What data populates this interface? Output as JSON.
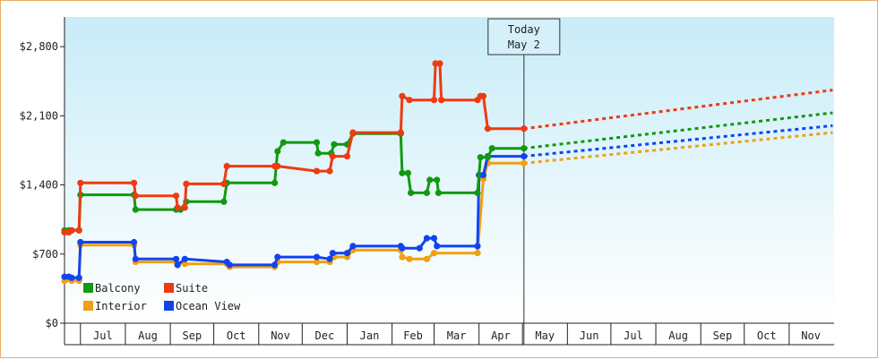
{
  "chart_data": {
    "type": "line",
    "title": "",
    "xlabel": "",
    "ylabel": "",
    "ylim": [
      0,
      3100
    ],
    "yticks": [
      0,
      700,
      1400,
      2100,
      2800
    ],
    "ytick_labels": [
      "$0",
      "$700",
      "$1,400",
      "$2,100",
      "$2,800"
    ],
    "months": [
      "Jul",
      "Aug",
      "Sep",
      "Oct",
      "Nov",
      "Dec",
      "Jan",
      "Feb",
      "Mar",
      "Apr",
      "May",
      "Jun",
      "Jul",
      "Aug",
      "Sep",
      "Oct",
      "Nov"
    ],
    "month_boundaries": [
      "2015-06-21",
      "2015-07-01",
      "2015-08-01",
      "2015-09-01",
      "2015-10-01",
      "2015-11-01",
      "2015-12-01",
      "2016-01-01",
      "2016-02-01",
      "2016-03-01",
      "2016-04-01",
      "2016-05-01",
      "2016-06-01",
      "2016-07-01",
      "2016-08-01",
      "2016-09-01",
      "2016-10-01",
      "2016-11-01",
      "2016-12-01"
    ],
    "today": {
      "date": "2016-05-02",
      "label_line1": "Today",
      "label_line2": "May 2"
    },
    "legend": {
      "position": "lower-left",
      "items": [
        "Balcony",
        "Suite",
        "Interior",
        "Ocean View"
      ]
    },
    "grid": false,
    "colors": {
      "Balcony": "#119911",
      "Suite": "#ee3a11",
      "Interior": "#f0a010",
      "Ocean View": "#1144ee",
      "plot_top": "#c8ecf8",
      "plot_bottom": "#ffffff"
    },
    "series": [
      {
        "name": "Balcony",
        "values": [
          [
            "2015-06-20",
            940
          ],
          [
            "2015-06-23",
            940
          ],
          [
            "2015-06-25",
            940
          ],
          [
            "2015-06-30",
            940
          ],
          [
            "2015-07-01",
            1300
          ],
          [
            "2015-08-07",
            1300
          ],
          [
            "2015-08-08",
            1150
          ],
          [
            "2015-09-05",
            1150
          ],
          [
            "2015-09-08",
            1150
          ],
          [
            "2015-09-12",
            1230
          ],
          [
            "2015-10-08",
            1230
          ],
          [
            "2015-10-10",
            1420
          ],
          [
            "2015-11-12",
            1420
          ],
          [
            "2015-11-14",
            1740
          ],
          [
            "2015-11-18",
            1830
          ],
          [
            "2015-12-11",
            1830
          ],
          [
            "2015-12-12",
            1720
          ],
          [
            "2015-12-21",
            1720
          ],
          [
            "2015-12-23",
            1810
          ],
          [
            "2016-01-01",
            1810
          ],
          [
            "2016-01-05",
            1920
          ],
          [
            "2016-02-07",
            1920
          ],
          [
            "2016-02-08",
            1520
          ],
          [
            "2016-02-12",
            1520
          ],
          [
            "2016-02-14",
            1320
          ],
          [
            "2016-02-25",
            1320
          ],
          [
            "2016-02-27",
            1450
          ],
          [
            "2016-03-03",
            1450
          ],
          [
            "2016-03-04",
            1320
          ],
          [
            "2016-03-31",
            1320
          ],
          [
            "2016-04-02",
            1680
          ],
          [
            "2016-04-07",
            1680
          ],
          [
            "2016-04-10",
            1770
          ],
          [
            "2016-05-02",
            1770
          ]
        ]
      },
      {
        "name": "Suite",
        "values": [
          [
            "2015-06-20",
            920
          ],
          [
            "2015-06-23",
            920
          ],
          [
            "2015-06-25",
            940
          ],
          [
            "2015-06-30",
            940
          ],
          [
            "2015-07-01",
            1420
          ],
          [
            "2015-08-07",
            1420
          ],
          [
            "2015-08-08",
            1290
          ],
          [
            "2015-09-05",
            1290
          ],
          [
            "2015-09-06",
            1170
          ],
          [
            "2015-09-11",
            1170
          ],
          [
            "2015-09-12",
            1410
          ],
          [
            "2015-10-08",
            1410
          ],
          [
            "2015-10-10",
            1590
          ],
          [
            "2015-11-12",
            1590
          ],
          [
            "2015-11-14",
            1590
          ],
          [
            "2015-12-11",
            1540
          ],
          [
            "2015-12-20",
            1540
          ],
          [
            "2015-12-22",
            1690
          ],
          [
            "2016-01-01",
            1690
          ],
          [
            "2016-01-05",
            1930
          ],
          [
            "2016-02-07",
            1930
          ],
          [
            "2016-02-08",
            2300
          ],
          [
            "2016-02-13",
            2260
          ],
          [
            "2016-03-01",
            2260
          ],
          [
            "2016-03-02",
            2630
          ],
          [
            "2016-03-05",
            2630
          ],
          [
            "2016-03-06",
            2260
          ],
          [
            "2016-03-31",
            2260
          ],
          [
            "2016-04-02",
            2300
          ],
          [
            "2016-04-04",
            2300
          ],
          [
            "2016-04-07",
            1970
          ],
          [
            "2016-05-02",
            1970
          ]
        ]
      },
      {
        "name": "Interior",
        "values": [
          [
            "2015-06-20",
            430
          ],
          [
            "2015-06-25",
            430
          ],
          [
            "2015-06-30",
            430
          ],
          [
            "2015-07-01",
            790
          ],
          [
            "2015-08-07",
            790
          ],
          [
            "2015-08-08",
            620
          ],
          [
            "2015-09-05",
            620
          ],
          [
            "2015-09-11",
            600
          ],
          [
            "2015-10-10",
            600
          ],
          [
            "2015-10-12",
            570
          ],
          [
            "2015-11-12",
            570
          ],
          [
            "2015-11-14",
            620
          ],
          [
            "2015-12-11",
            620
          ],
          [
            "2015-12-20",
            620
          ],
          [
            "2015-12-23",
            670
          ],
          [
            "2016-01-01",
            670
          ],
          [
            "2016-01-05",
            740
          ],
          [
            "2016-02-07",
            740
          ],
          [
            "2016-02-08",
            670
          ],
          [
            "2016-02-13",
            650
          ],
          [
            "2016-02-25",
            650
          ],
          [
            "2016-03-01",
            710
          ],
          [
            "2016-03-31",
            710
          ],
          [
            "2016-04-04",
            1460
          ],
          [
            "2016-04-07",
            1620
          ],
          [
            "2016-05-02",
            1620
          ]
        ]
      },
      {
        "name": "Ocean View",
        "values": [
          [
            "2015-06-20",
            470
          ],
          [
            "2015-06-23",
            470
          ],
          [
            "2015-06-25",
            460
          ],
          [
            "2015-06-30",
            460
          ],
          [
            "2015-07-01",
            820
          ],
          [
            "2015-08-07",
            820
          ],
          [
            "2015-08-08",
            650
          ],
          [
            "2015-09-05",
            650
          ],
          [
            "2015-09-06",
            590
          ],
          [
            "2015-09-11",
            650
          ],
          [
            "2015-10-10",
            620
          ],
          [
            "2015-10-12",
            590
          ],
          [
            "2015-11-12",
            590
          ],
          [
            "2015-11-14",
            670
          ],
          [
            "2015-12-11",
            670
          ],
          [
            "2015-12-20",
            650
          ],
          [
            "2015-12-22",
            710
          ],
          [
            "2016-01-01",
            710
          ],
          [
            "2016-01-05",
            780
          ],
          [
            "2016-02-07",
            780
          ],
          [
            "2016-02-08",
            760
          ],
          [
            "2016-02-20",
            760
          ],
          [
            "2016-02-25",
            860
          ],
          [
            "2016-03-01",
            860
          ],
          [
            "2016-03-03",
            780
          ],
          [
            "2016-03-31",
            780
          ],
          [
            "2016-04-01",
            1500
          ],
          [
            "2016-04-04",
            1500
          ],
          [
            "2016-04-07",
            1690
          ],
          [
            "2016-05-02",
            1690
          ]
        ]
      }
    ],
    "forecast": [
      {
        "name": "Balcony",
        "values": [
          [
            "2016-05-02",
            1770
          ],
          [
            "2016-12-01",
            2130
          ]
        ]
      },
      {
        "name": "Suite",
        "values": [
          [
            "2016-05-02",
            1970
          ],
          [
            "2016-12-01",
            2360
          ]
        ]
      },
      {
        "name": "Interior",
        "values": [
          [
            "2016-05-02",
            1620
          ],
          [
            "2016-12-01",
            1930
          ]
        ]
      },
      {
        "name": "Ocean View",
        "values": [
          [
            "2016-05-02",
            1690
          ],
          [
            "2016-12-01",
            2000
          ]
        ]
      }
    ]
  }
}
